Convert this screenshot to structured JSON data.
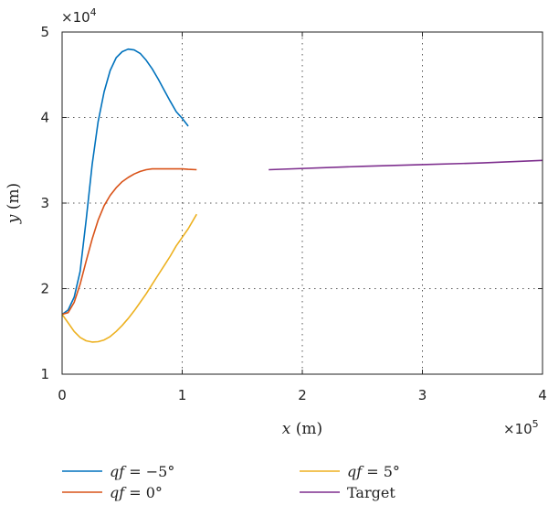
{
  "chart_data": {
    "type": "line",
    "xlabel_var": "x",
    "xlabel_unit": " (m)",
    "ylabel_var": "y",
    "ylabel_unit": " (m)",
    "x_multiplier": "×10",
    "x_exponent": "5",
    "y_multiplier": "×10",
    "y_exponent": "4",
    "xlim": [
      0,
      4
    ],
    "ylim": [
      1,
      5
    ],
    "x_ticks": [
      0,
      1,
      2,
      3,
      4
    ],
    "y_ticks": [
      1,
      2,
      3,
      4,
      5
    ],
    "grid": "dotted",
    "legend_position": "bottom",
    "series": [
      {
        "name_prefix": "qf",
        "name_value": " = −5°",
        "color": "#0072BD",
        "x": [
          0,
          0.05,
          0.1,
          0.15,
          0.2,
          0.25,
          0.3,
          0.35,
          0.4,
          0.45,
          0.5,
          0.55,
          0.6,
          0.65,
          0.7,
          0.75,
          0.8,
          0.85,
          0.9,
          0.95,
          1.0,
          1.05
        ],
        "y": [
          1.7,
          1.75,
          1.9,
          2.2,
          2.8,
          3.45,
          3.95,
          4.3,
          4.55,
          4.7,
          4.77,
          4.8,
          4.79,
          4.75,
          4.67,
          4.57,
          4.45,
          4.32,
          4.19,
          4.07,
          3.99,
          3.9
        ]
      },
      {
        "name_prefix": "qf",
        "name_value": " = 0°",
        "color": "#D95319",
        "x": [
          0,
          0.05,
          0.1,
          0.15,
          0.2,
          0.25,
          0.3,
          0.35,
          0.4,
          0.45,
          0.5,
          0.55,
          0.6,
          0.65,
          0.7,
          0.75,
          0.8,
          0.85,
          0.9,
          0.95,
          1.0,
          1.05,
          1.12
        ],
        "y": [
          1.7,
          1.72,
          1.84,
          2.05,
          2.32,
          2.58,
          2.8,
          2.97,
          3.09,
          3.18,
          3.25,
          3.3,
          3.34,
          3.37,
          3.39,
          3.4,
          3.4,
          3.4,
          3.4,
          3.4,
          3.4,
          3.395,
          3.39
        ]
      },
      {
        "name_prefix": "qf",
        "name_value": " = 5°",
        "color": "#EDB120",
        "x": [
          0,
          0.05,
          0.1,
          0.15,
          0.2,
          0.25,
          0.3,
          0.35,
          0.4,
          0.45,
          0.5,
          0.55,
          0.6,
          0.65,
          0.7,
          0.75,
          0.8,
          0.85,
          0.9,
          0.95,
          1.0,
          1.05,
          1.12
        ],
        "y": [
          1.7,
          1.6,
          1.5,
          1.43,
          1.39,
          1.375,
          1.38,
          1.4,
          1.44,
          1.5,
          1.57,
          1.65,
          1.74,
          1.84,
          1.94,
          2.05,
          2.16,
          2.27,
          2.38,
          2.5,
          2.6,
          2.7,
          2.87
        ]
      },
      {
        "name_prefix": "",
        "name_value": "Target",
        "color": "#7E2F8E",
        "x": [
          1.72,
          2.5,
          3.0,
          3.5,
          4.0
        ],
        "y": [
          3.39,
          3.43,
          3.45,
          3.47,
          3.5
        ]
      }
    ]
  }
}
